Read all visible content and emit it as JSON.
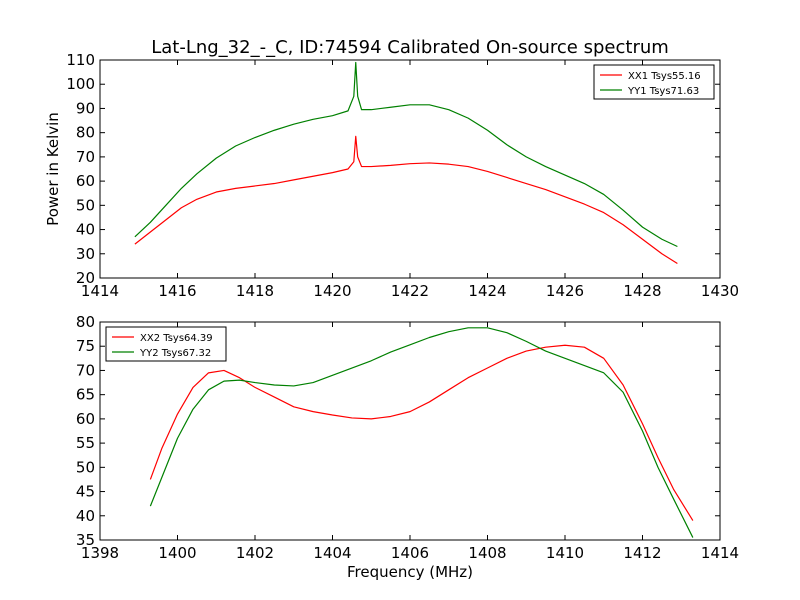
{
  "figure": {
    "title": "Lat-Lng_32_-_C, ID:74594 Calibrated On-source spectrum"
  },
  "chart_data": [
    {
      "type": "line",
      "xlabel": "",
      "ylabel": "Power in Kelvin",
      "xlim": [
        1414,
        1430
      ],
      "ylim": [
        20,
        110
      ],
      "xticks": [
        1414,
        1416,
        1418,
        1420,
        1422,
        1424,
        1426,
        1428,
        1430
      ],
      "yticks": [
        20,
        30,
        40,
        50,
        60,
        70,
        80,
        90,
        100,
        110
      ],
      "grid": false,
      "legend_position": "top-right",
      "series": [
        {
          "name": "XX1 Tsys55.16",
          "color": "#ff0000",
          "x": [
            1414.9,
            1415.3,
            1415.7,
            1416.1,
            1416.5,
            1417.0,
            1417.5,
            1418.0,
            1418.5,
            1419.0,
            1419.5,
            1420.0,
            1420.4,
            1420.55,
            1420.6,
            1420.65,
            1420.75,
            1421.0,
            1421.5,
            1422.0,
            1422.5,
            1423.0,
            1423.5,
            1424.0,
            1424.5,
            1425.0,
            1425.5,
            1426.0,
            1426.5,
            1427.0,
            1427.5,
            1428.0,
            1428.5,
            1428.9
          ],
          "y": [
            34,
            39,
            44,
            49,
            52.5,
            55.5,
            57,
            58,
            59,
            60.5,
            62,
            63.5,
            65,
            68,
            78.5,
            70,
            66,
            66,
            66.5,
            67.2,
            67.5,
            67,
            66,
            64,
            61.5,
            59,
            56.5,
            53.5,
            50.5,
            47,
            42,
            36,
            30,
            26
          ]
        },
        {
          "name": "YY1 Tsys71.63",
          "color": "#008000",
          "x": [
            1414.9,
            1415.3,
            1415.7,
            1416.1,
            1416.5,
            1417.0,
            1417.5,
            1418.0,
            1418.5,
            1419.0,
            1419.5,
            1420.0,
            1420.4,
            1420.55,
            1420.6,
            1420.65,
            1420.75,
            1421.0,
            1421.5,
            1422.0,
            1422.5,
            1423.0,
            1423.5,
            1424.0,
            1424.5,
            1425.0,
            1425.5,
            1426.0,
            1426.5,
            1427.0,
            1427.5,
            1428.0,
            1428.5,
            1428.9
          ],
          "y": [
            37,
            43,
            50,
            57,
            63,
            69.5,
            74.5,
            78,
            81,
            83.5,
            85.5,
            87,
            89,
            95,
            109,
            95,
            89.5,
            89.5,
            90.5,
            91.5,
            91.5,
            89.5,
            86,
            81,
            75,
            70,
            66,
            62.5,
            59,
            54.5,
            48,
            41,
            36,
            33
          ]
        }
      ]
    },
    {
      "type": "line",
      "xlabel": "Frequency (MHz)",
      "ylabel": "",
      "xlim": [
        1398,
        1414
      ],
      "ylim": [
        35,
        80
      ],
      "xticks": [
        1398,
        1400,
        1402,
        1404,
        1406,
        1408,
        1410,
        1412,
        1414
      ],
      "yticks": [
        35,
        40,
        45,
        50,
        55,
        60,
        65,
        70,
        75,
        80
      ],
      "grid": false,
      "legend_position": "top-left",
      "series": [
        {
          "name": "XX2 Tsys64.39",
          "color": "#ff0000",
          "x": [
            1399.3,
            1399.6,
            1400.0,
            1400.4,
            1400.8,
            1401.2,
            1401.6,
            1402.0,
            1402.5,
            1403.0,
            1403.5,
            1404.0,
            1404.5,
            1405.0,
            1405.5,
            1406.0,
            1406.5,
            1407.0,
            1407.5,
            1408.0,
            1408.5,
            1409.0,
            1409.5,
            1410.0,
            1410.5,
            1411.0,
            1411.5,
            1412.0,
            1412.4,
            1412.8,
            1413.3
          ],
          "y": [
            47.5,
            54,
            61,
            66.5,
            69.5,
            70,
            68.5,
            66.5,
            64.5,
            62.5,
            61.5,
            60.8,
            60.2,
            60.0,
            60.5,
            61.5,
            63.5,
            66,
            68.5,
            70.5,
            72.5,
            74,
            74.8,
            75.2,
            74.8,
            72.5,
            67,
            59,
            52,
            45.5,
            39
          ]
        },
        {
          "name": "YY2 Tsys67.32",
          "color": "#008000",
          "x": [
            1399.3,
            1399.6,
            1400.0,
            1400.4,
            1400.8,
            1401.2,
            1401.6,
            1402.0,
            1402.5,
            1403.0,
            1403.5,
            1404.0,
            1404.5,
            1405.0,
            1405.5,
            1406.0,
            1406.5,
            1407.0,
            1407.5,
            1408.0,
            1408.5,
            1409.0,
            1409.5,
            1410.0,
            1410.5,
            1411.0,
            1411.5,
            1412.0,
            1412.4,
            1412.8,
            1413.3
          ],
          "y": [
            42,
            48,
            56,
            62,
            66,
            67.8,
            68,
            67.5,
            67,
            66.8,
            67.5,
            69,
            70.5,
            72,
            73.8,
            75.3,
            76.8,
            78,
            78.8,
            78.8,
            77.8,
            76,
            74,
            72.5,
            71,
            69.5,
            65.5,
            57.5,
            50,
            43.5,
            35.5
          ]
        }
      ]
    }
  ]
}
